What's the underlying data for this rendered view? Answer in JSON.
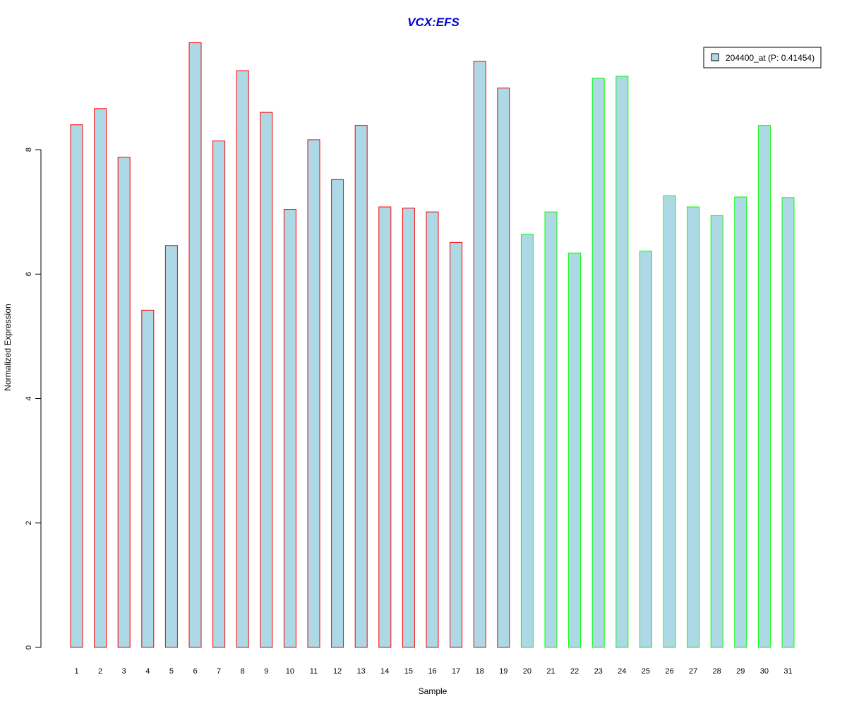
{
  "chart_data": {
    "type": "bar",
    "title": "VCX:EFS",
    "xlabel": "Sample",
    "ylabel": "Normalized Expression",
    "ylim": [
      0,
      9.8
    ],
    "y_ticks": [
      "0",
      "2",
      "4",
      "6",
      "8"
    ],
    "categories": [
      "1",
      "2",
      "3",
      "4",
      "5",
      "6",
      "7",
      "8",
      "9",
      "10",
      "11",
      "12",
      "13",
      "14",
      "15",
      "16",
      "17",
      "18",
      "19",
      "20",
      "21",
      "22",
      "23",
      "24",
      "25",
      "26",
      "27",
      "28",
      "29",
      "30",
      "31"
    ],
    "values": [
      8.4,
      8.66,
      7.88,
      5.42,
      6.46,
      9.72,
      8.14,
      9.27,
      8.6,
      7.04,
      8.16,
      7.52,
      8.39,
      7.08,
      7.06,
      7.0,
      6.51,
      9.42,
      8.99,
      6.64,
      7.0,
      6.34,
      9.15,
      9.18,
      6.37,
      7.26,
      7.08,
      6.94,
      7.24,
      8.39,
      7.23
    ],
    "group_of_bar": [
      "red",
      "red",
      "red",
      "red",
      "red",
      "red",
      "red",
      "red",
      "red",
      "red",
      "red",
      "red",
      "red",
      "red",
      "red",
      "red",
      "red",
      "red",
      "red",
      "green",
      "green",
      "green",
      "green",
      "green",
      "green",
      "green",
      "green",
      "green",
      "green",
      "green",
      "green"
    ],
    "legend": {
      "label": "204400_at (P: 0.41454)",
      "placement": "top-right"
    },
    "grid": false,
    "colors": {
      "bar_fill": "#add8e6",
      "red": "#ff0000",
      "green": "#00ff00",
      "title": "#0000cc",
      "axis": "#000000"
    }
  }
}
